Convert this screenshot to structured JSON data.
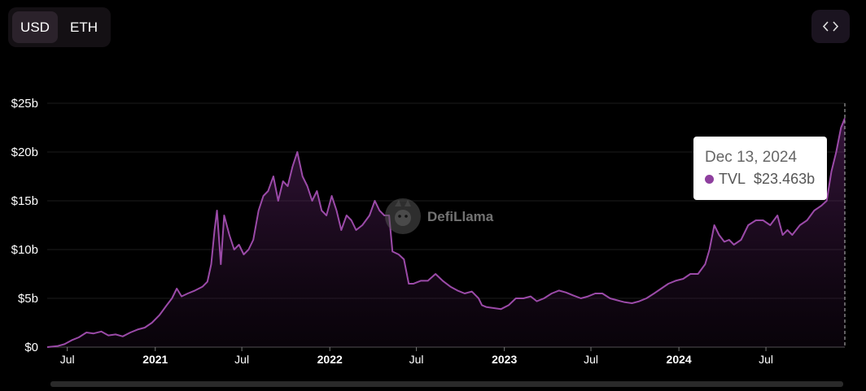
{
  "currency_toggle": {
    "options": [
      "USD",
      "ETH"
    ],
    "selected": "USD"
  },
  "embed_button": {
    "icon": "code-brackets-icon",
    "label": "<>"
  },
  "watermark": {
    "text": "DefiLlama",
    "icon": "llama-logo-icon"
  },
  "tooltip": {
    "date": "Dec 13, 2024",
    "series": "TVL",
    "value": "$23.463b",
    "dot_color": "#8e3f9e"
  },
  "chart_data": {
    "type": "area",
    "series": [
      {
        "name": "TVL",
        "color": "#9b4aa8",
        "points": [
          [
            "2020-05-20",
            0.0
          ],
          [
            "2020-06-10",
            0.1
          ],
          [
            "2020-06-25",
            0.3
          ],
          [
            "2020-07-10",
            0.7
          ],
          [
            "2020-07-25",
            1.0
          ],
          [
            "2020-08-10",
            1.5
          ],
          [
            "2020-08-25",
            1.4
          ],
          [
            "2020-09-10",
            1.6
          ],
          [
            "2020-09-25",
            1.2
          ],
          [
            "2020-10-10",
            1.3
          ],
          [
            "2020-10-25",
            1.1
          ],
          [
            "2020-11-10",
            1.5
          ],
          [
            "2020-11-25",
            1.8
          ],
          [
            "2020-12-10",
            2.0
          ],
          [
            "2020-12-25",
            2.5
          ],
          [
            "2021-01-10",
            3.3
          ],
          [
            "2021-01-25",
            4.3
          ],
          [
            "2021-02-05",
            5.0
          ],
          [
            "2021-02-15",
            6.0
          ],
          [
            "2021-02-25",
            5.2
          ],
          [
            "2021-03-10",
            5.5
          ],
          [
            "2021-03-25",
            5.8
          ],
          [
            "2021-04-10",
            6.2
          ],
          [
            "2021-04-20",
            6.7
          ],
          [
            "2021-04-28",
            8.5
          ],
          [
            "2021-05-05",
            12.0
          ],
          [
            "2021-05-10",
            14.0
          ],
          [
            "2021-05-18",
            8.5
          ],
          [
            "2021-05-25",
            13.5
          ],
          [
            "2021-06-05",
            11.5
          ],
          [
            "2021-06-15",
            10.0
          ],
          [
            "2021-06-25",
            10.5
          ],
          [
            "2021-07-05",
            9.5
          ],
          [
            "2021-07-15",
            10.0
          ],
          [
            "2021-07-25",
            11.0
          ],
          [
            "2021-08-05",
            14.0
          ],
          [
            "2021-08-15",
            15.5
          ],
          [
            "2021-08-25",
            16.0
          ],
          [
            "2021-09-05",
            17.5
          ],
          [
            "2021-09-15",
            15.0
          ],
          [
            "2021-09-25",
            17.0
          ],
          [
            "2021-10-05",
            16.5
          ],
          [
            "2021-10-15",
            18.5
          ],
          [
            "2021-10-25",
            20.0
          ],
          [
            "2021-11-05",
            17.5
          ],
          [
            "2021-11-15",
            16.5
          ],
          [
            "2021-11-25",
            15.0
          ],
          [
            "2021-12-05",
            16.0
          ],
          [
            "2021-12-15",
            14.0
          ],
          [
            "2021-12-25",
            13.5
          ],
          [
            "2022-01-05",
            15.5
          ],
          [
            "2022-01-15",
            14.0
          ],
          [
            "2022-01-25",
            12.0
          ],
          [
            "2022-02-05",
            13.5
          ],
          [
            "2022-02-15",
            13.0
          ],
          [
            "2022-02-25",
            12.0
          ],
          [
            "2022-03-10",
            12.5
          ],
          [
            "2022-03-25",
            13.5
          ],
          [
            "2022-04-05",
            15.0
          ],
          [
            "2022-04-15",
            14.0
          ],
          [
            "2022-04-25",
            13.5
          ],
          [
            "2022-05-05",
            13.5
          ],
          [
            "2022-05-12",
            9.8
          ],
          [
            "2022-05-25",
            9.5
          ],
          [
            "2022-06-05",
            9.0
          ],
          [
            "2022-06-15",
            6.5
          ],
          [
            "2022-06-25",
            6.5
          ],
          [
            "2022-07-10",
            6.8
          ],
          [
            "2022-07-25",
            6.8
          ],
          [
            "2022-08-10",
            7.5
          ],
          [
            "2022-08-25",
            6.8
          ],
          [
            "2022-09-10",
            6.2
          ],
          [
            "2022-09-25",
            5.8
          ],
          [
            "2022-10-10",
            5.5
          ],
          [
            "2022-10-25",
            5.7
          ],
          [
            "2022-11-08",
            5.0
          ],
          [
            "2022-11-15",
            4.3
          ],
          [
            "2022-11-25",
            4.1
          ],
          [
            "2022-12-10",
            4.0
          ],
          [
            "2022-12-25",
            3.9
          ],
          [
            "2023-01-10",
            4.3
          ],
          [
            "2023-01-25",
            5.0
          ],
          [
            "2023-02-10",
            5.0
          ],
          [
            "2023-02-25",
            5.2
          ],
          [
            "2023-03-10",
            4.7
          ],
          [
            "2023-03-25",
            5.0
          ],
          [
            "2023-04-10",
            5.5
          ],
          [
            "2023-04-25",
            5.8
          ],
          [
            "2023-05-10",
            5.6
          ],
          [
            "2023-05-25",
            5.3
          ],
          [
            "2023-06-10",
            5.0
          ],
          [
            "2023-06-25",
            5.2
          ],
          [
            "2023-07-10",
            5.5
          ],
          [
            "2023-07-25",
            5.5
          ],
          [
            "2023-08-10",
            5.0
          ],
          [
            "2023-08-25",
            4.8
          ],
          [
            "2023-09-10",
            4.6
          ],
          [
            "2023-09-25",
            4.5
          ],
          [
            "2023-10-10",
            4.7
          ],
          [
            "2023-10-25",
            5.0
          ],
          [
            "2023-11-10",
            5.5
          ],
          [
            "2023-11-25",
            6.0
          ],
          [
            "2023-12-10",
            6.5
          ],
          [
            "2023-12-25",
            6.8
          ],
          [
            "2024-01-10",
            7.0
          ],
          [
            "2024-01-25",
            7.5
          ],
          [
            "2024-02-10",
            7.5
          ],
          [
            "2024-02-25",
            8.5
          ],
          [
            "2024-03-05",
            10.0
          ],
          [
            "2024-03-15",
            12.5
          ],
          [
            "2024-03-25",
            11.5
          ],
          [
            "2024-04-05",
            10.8
          ],
          [
            "2024-04-15",
            11.0
          ],
          [
            "2024-04-25",
            10.5
          ],
          [
            "2024-05-10",
            11.0
          ],
          [
            "2024-05-25",
            12.5
          ],
          [
            "2024-06-10",
            13.0
          ],
          [
            "2024-06-25",
            13.0
          ],
          [
            "2024-07-10",
            12.5
          ],
          [
            "2024-07-25",
            13.5
          ],
          [
            "2024-08-05",
            11.5
          ],
          [
            "2024-08-15",
            12.0
          ],
          [
            "2024-08-25",
            11.5
          ],
          [
            "2024-09-10",
            12.5
          ],
          [
            "2024-09-25",
            13.0
          ],
          [
            "2024-10-10",
            14.0
          ],
          [
            "2024-10-25",
            14.5
          ],
          [
            "2024-11-05",
            15.0
          ],
          [
            "2024-11-15",
            18.0
          ],
          [
            "2024-11-25",
            20.0
          ],
          [
            "2024-12-05",
            22.5
          ],
          [
            "2024-12-13",
            23.463
          ]
        ]
      }
    ],
    "y_ticks": [
      "$0",
      "$5b",
      "$10b",
      "$15b",
      "$20b",
      "$25b"
    ],
    "y_tick_values": [
      0,
      5,
      10,
      15,
      20,
      25
    ],
    "ylim": [
      0,
      25
    ],
    "x_ticks": [
      {
        "label": "Jul",
        "date": "2020-07-01",
        "bold": false
      },
      {
        "label": "2021",
        "date": "2021-01-01",
        "bold": true
      },
      {
        "label": "Jul",
        "date": "2021-07-01",
        "bold": false
      },
      {
        "label": "2022",
        "date": "2022-01-01",
        "bold": true
      },
      {
        "label": "Jul",
        "date": "2022-07-01",
        "bold": false
      },
      {
        "label": "2023",
        "date": "2023-01-01",
        "bold": true
      },
      {
        "label": "Jul",
        "date": "2023-07-01",
        "bold": false
      },
      {
        "label": "2024",
        "date": "2024-01-01",
        "bold": true
      },
      {
        "label": "Jul",
        "date": "2024-07-01",
        "bold": false
      }
    ],
    "xlim": [
      "2020-05-20",
      "2024-12-13"
    ],
    "grid": true,
    "legend": "none"
  }
}
